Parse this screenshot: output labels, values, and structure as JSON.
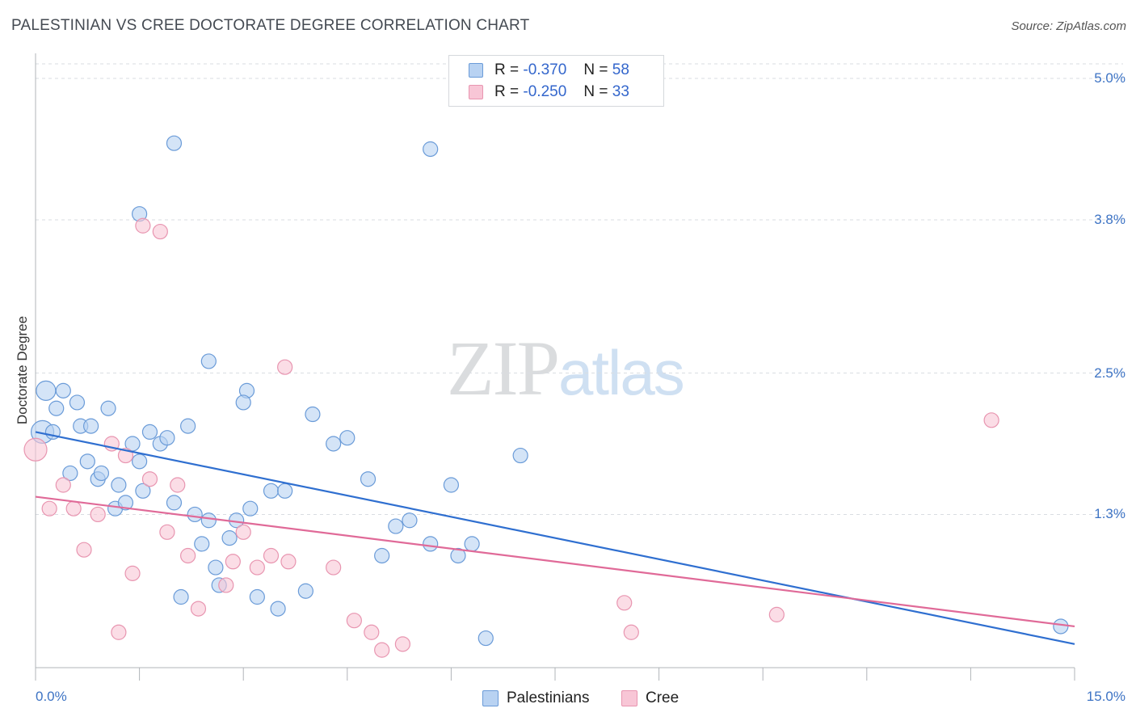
{
  "header": {
    "title": "PALESTINIAN VS CREE DOCTORATE DEGREE CORRELATION CHART",
    "source": "Source: ZipAtlas.com"
  },
  "watermark": {
    "zip": "ZIP",
    "atlas": "atlas"
  },
  "legend": {
    "rows": [
      {
        "r_label": "R =",
        "r_value": "-0.370",
        "n_label": "N =",
        "n_value": "58"
      },
      {
        "r_label": "R =",
        "r_value": "-0.250",
        "n_label": "N =",
        "n_value": "33"
      }
    ]
  },
  "bottom_legend": {
    "series1": "Palestinians",
    "series2": "Cree"
  },
  "colors": {
    "blue_fill": "#b8d2f2",
    "blue_stroke": "#6a9bd8",
    "blue_line": "#2f6fd0",
    "pink_fill": "#f8c6d6",
    "pink_stroke": "#e895b0",
    "pink_line": "#e06a98",
    "tick_text": "#3d73c4",
    "grid": "#d9dde2"
  },
  "chart_data": {
    "type": "scatter",
    "title": "PALESTINIAN VS CREE DOCTORATE DEGREE CORRELATION CHART",
    "xlabel": "",
    "ylabel": "Doctorate Degree",
    "xlim": [
      0,
      15
    ],
    "ylim": [
      0,
      5.2
    ],
    "x_tick_labels": [
      "0.0%",
      "15.0%"
    ],
    "y_ticks": [
      {
        "value": 1.3,
        "label": "1.3%"
      },
      {
        "value": 2.5,
        "label": "2.5%"
      },
      {
        "value": 3.8,
        "label": "3.8%"
      },
      {
        "value": 5.0,
        "label": "5.0%"
      }
    ],
    "grid": "horizontal dashed",
    "legend_position": "top-center",
    "series": [
      {
        "name": "Palestinians",
        "r": -0.37,
        "n": 58,
        "trend": [
          [
            0,
            2.0
          ],
          [
            15,
            0.2
          ]
        ],
        "points": [
          [
            0.1,
            2.0,
            14
          ],
          [
            0.15,
            2.35,
            12
          ],
          [
            0.25,
            2.0,
            9
          ],
          [
            0.3,
            2.2,
            9
          ],
          [
            0.4,
            2.35,
            9
          ],
          [
            0.5,
            1.65,
            9
          ],
          [
            0.6,
            2.25,
            9
          ],
          [
            0.65,
            2.05,
            9
          ],
          [
            0.75,
            1.75,
            9
          ],
          [
            0.8,
            2.05,
            9
          ],
          [
            0.9,
            1.6,
            9
          ],
          [
            0.95,
            1.65,
            9
          ],
          [
            1.05,
            2.2,
            9
          ],
          [
            1.15,
            1.35,
            9
          ],
          [
            1.3,
            1.4,
            9
          ],
          [
            1.4,
            1.9,
            9
          ],
          [
            1.5,
            1.75,
            9
          ],
          [
            1.55,
            1.5,
            9
          ],
          [
            1.65,
            2.0,
            9
          ],
          [
            1.8,
            1.9,
            9
          ],
          [
            1.9,
            1.95,
            9
          ],
          [
            2.0,
            1.4,
            9
          ],
          [
            2.1,
            0.6,
            9
          ],
          [
            2.2,
            2.05,
            9
          ],
          [
            2.3,
            1.3,
            9
          ],
          [
            2.4,
            1.05,
            9
          ],
          [
            2.5,
            1.25,
            9
          ],
          [
            2.6,
            0.85,
            9
          ],
          [
            2.65,
            0.7,
            9
          ],
          [
            2.8,
            1.1,
            9
          ],
          [
            2.9,
            1.25,
            9
          ],
          [
            3.05,
            2.35,
            9
          ],
          [
            3.2,
            0.6,
            9
          ],
          [
            3.4,
            1.5,
            9
          ],
          [
            3.5,
            0.5,
            9
          ],
          [
            3.6,
            1.5,
            9
          ],
          [
            3.9,
            0.65,
            9
          ],
          [
            4.3,
            1.9,
            9
          ],
          [
            4.5,
            1.95,
            9
          ],
          [
            4.8,
            1.6,
            9
          ],
          [
            5.0,
            0.95,
            9
          ],
          [
            5.2,
            1.2,
            9
          ],
          [
            5.4,
            1.25,
            9
          ],
          [
            5.7,
            1.05,
            9
          ],
          [
            6.0,
            1.55,
            9
          ],
          [
            6.1,
            0.95,
            9
          ],
          [
            6.3,
            1.05,
            9
          ],
          [
            6.5,
            0.25,
            9
          ],
          [
            7.0,
            1.8,
            9
          ],
          [
            3.0,
            2.25,
            9
          ],
          [
            2.5,
            2.6,
            9
          ],
          [
            2.0,
            4.45,
            9
          ],
          [
            1.5,
            3.85,
            9
          ],
          [
            3.1,
            1.35,
            9
          ],
          [
            4.0,
            2.15,
            9
          ],
          [
            5.7,
            4.4,
            9
          ],
          [
            1.2,
            1.55,
            9
          ],
          [
            14.8,
            0.35,
            9
          ]
        ]
      },
      {
        "name": "Cree",
        "r": -0.25,
        "n": 33,
        "trend": [
          [
            0,
            1.45
          ],
          [
            15,
            0.35
          ]
        ],
        "points": [
          [
            0.0,
            1.85,
            14
          ],
          [
            0.2,
            1.35,
            9
          ],
          [
            0.4,
            1.55,
            9
          ],
          [
            0.55,
            1.35,
            9
          ],
          [
            0.7,
            1.0,
            9
          ],
          [
            0.9,
            1.3,
            9
          ],
          [
            1.1,
            1.9,
            9
          ],
          [
            1.2,
            0.3,
            9
          ],
          [
            1.3,
            1.8,
            9
          ],
          [
            1.4,
            0.8,
            9
          ],
          [
            1.55,
            3.75,
            9
          ],
          [
            1.65,
            1.6,
            9
          ],
          [
            1.8,
            3.7,
            9
          ],
          [
            1.9,
            1.15,
            9
          ],
          [
            2.05,
            1.55,
            9
          ],
          [
            2.2,
            0.95,
            9
          ],
          [
            2.35,
            0.5,
            9
          ],
          [
            2.75,
            0.7,
            9
          ],
          [
            2.85,
            0.9,
            9
          ],
          [
            3.0,
            1.15,
            9
          ],
          [
            3.2,
            0.85,
            9
          ],
          [
            3.4,
            0.95,
            9
          ],
          [
            3.6,
            2.55,
            9
          ],
          [
            3.65,
            0.9,
            9
          ],
          [
            4.3,
            0.85,
            9
          ],
          [
            4.6,
            0.4,
            9
          ],
          [
            4.85,
            0.3,
            9
          ],
          [
            5.0,
            0.15,
            9
          ],
          [
            5.3,
            0.2,
            9
          ],
          [
            8.5,
            0.55,
            9
          ],
          [
            8.6,
            0.3,
            9
          ],
          [
            10.7,
            0.45,
            9
          ],
          [
            13.8,
            2.1,
            9
          ]
        ]
      }
    ]
  }
}
